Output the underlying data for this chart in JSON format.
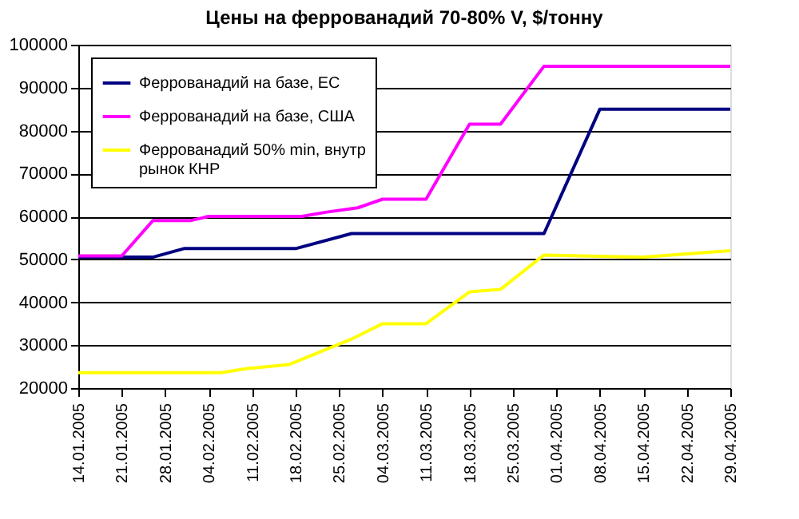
{
  "chart_data": {
    "type": "line",
    "title": "Цены на феррованадий 70-80% V, $/тонну",
    "series": [
      {
        "name": "Феррованадий на базе, ЕС",
        "color": "#000080",
        "x": [
          "2005-01-14",
          "2005-01-26",
          "2005-01-31",
          "2005-02-18",
          "2005-02-27",
          "2005-03-30",
          "2005-04-08",
          "2005-04-29"
        ],
        "values": [
          50500,
          50500,
          52500,
          52500,
          56000,
          56000,
          85000,
          85000
        ]
      },
      {
        "name": "Феррованадий на базе, США",
        "color": "#ff00ff",
        "x": [
          "2005-01-14",
          "2005-01-21",
          "2005-01-26",
          "2005-02-01",
          "2005-02-04",
          "2005-02-19",
          "2005-02-23",
          "2005-02-28",
          "2005-03-04",
          "2005-03-11",
          "2005-03-18",
          "2005-03-23",
          "2005-03-30",
          "2005-04-29"
        ],
        "values": [
          50800,
          50800,
          59000,
          59000,
          60000,
          60000,
          61000,
          62000,
          64000,
          64000,
          81500,
          81500,
          95000,
          95000
        ]
      },
      {
        "name": "Феррованадий 50% min, внутр рынок КНР",
        "color": "#ffff00",
        "x": [
          "2005-01-14",
          "2005-02-06",
          "2005-02-10",
          "2005-02-17",
          "2005-02-27",
          "2005-03-04",
          "2005-03-11",
          "2005-03-18",
          "2005-03-23",
          "2005-03-30",
          "2005-04-15",
          "2005-04-29"
        ],
        "values": [
          23600,
          23600,
          24500,
          25500,
          31400,
          35000,
          35000,
          42400,
          43000,
          51000,
          50500,
          52000
        ]
      }
    ],
    "xlim": [
      "2005-01-14",
      "2005-04-29"
    ],
    "xticks": [
      {
        "value": "2005-01-14",
        "label": "14.01.2005"
      },
      {
        "value": "2005-01-21",
        "label": "21.01.2005"
      },
      {
        "value": "2005-01-28",
        "label": "28.01.2005"
      },
      {
        "value": "2005-02-04",
        "label": "04.02.2005"
      },
      {
        "value": "2005-02-11",
        "label": "11.02.2005"
      },
      {
        "value": "2005-02-18",
        "label": "18.02.2005"
      },
      {
        "value": "2005-02-25",
        "label": "25.02.2005"
      },
      {
        "value": "2005-03-04",
        "label": "04.03.2005"
      },
      {
        "value": "2005-03-11",
        "label": "11.03.2005"
      },
      {
        "value": "2005-03-18",
        "label": "18.03.2005"
      },
      {
        "value": "2005-03-25",
        "label": "25.03.2005"
      },
      {
        "value": "2005-04-01",
        "label": "01.04.2005"
      },
      {
        "value": "2005-04-08",
        "label": "08.04.2005"
      },
      {
        "value": "2005-04-15",
        "label": "15.04.2005"
      },
      {
        "value": "2005-04-22",
        "label": "22.04.2005"
      },
      {
        "value": "2005-04-29",
        "label": "29.04.2005"
      }
    ],
    "ylim": [
      20000,
      100000
    ],
    "yticks": [
      20000,
      30000,
      40000,
      50000,
      60000,
      70000,
      80000,
      90000,
      100000
    ],
    "grid": "y",
    "legend": "top left",
    "marker": "none",
    "line_style": "solid"
  }
}
